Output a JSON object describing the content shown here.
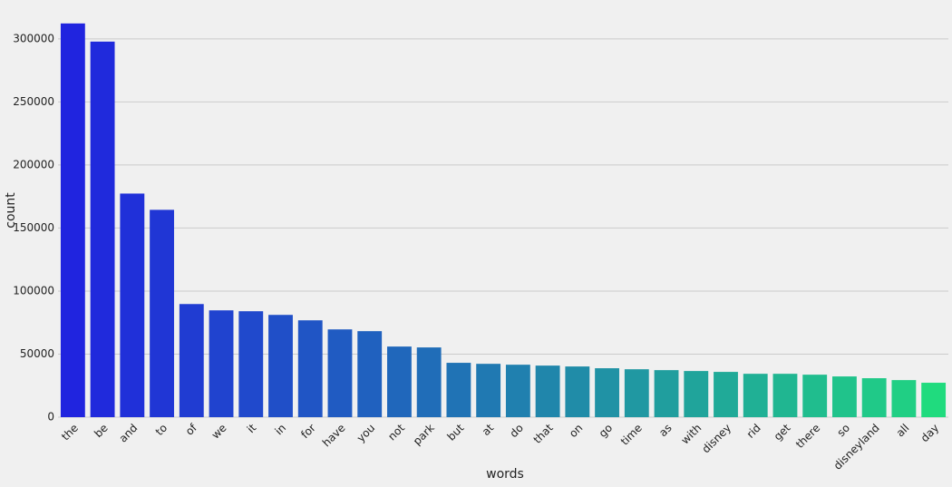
{
  "chart_data": {
    "type": "bar",
    "x_label": "words",
    "y_label": "count",
    "categories": [
      "the",
      "be",
      "and",
      "to",
      "of",
      "we",
      "it",
      "in",
      "for",
      "have",
      "you",
      "not",
      "park",
      "but",
      "at",
      "do",
      "that",
      "on",
      "go",
      "time",
      "as",
      "with",
      "disney",
      "rid",
      "get",
      "there",
      "so",
      "disneyland",
      "all",
      "day"
    ],
    "values": [
      312200,
      297800,
      177300,
      164400,
      89700,
      84700,
      84000,
      81100,
      76800,
      69600,
      68200,
      56000,
      55300,
      43100,
      42300,
      41600,
      40900,
      40200,
      38800,
      38000,
      37300,
      36600,
      35900,
      34400,
      34400,
      33700,
      32300,
      30900,
      29400,
      27300
    ],
    "colors": [
      "#2024df",
      "#202adc",
      "#2030d9",
      "#2036d5",
      "#203cd2",
      "#2043cf",
      "#2049cc",
      "#204fc8",
      "#2055c5",
      "#205bc2",
      "#2061bf",
      "#2067bb",
      "#206db8",
      "#2073b5",
      "#2079b2",
      "#2080af",
      "#2086ab",
      "#208ca8",
      "#2092a5",
      "#2098a2",
      "#209e9e",
      "#20a49b",
      "#20aa98",
      "#20b095",
      "#20b691",
      "#20bd8e",
      "#20c38b",
      "#20c988",
      "#20cf84",
      "#20db7e"
    ],
    "ylim": [
      0,
      320000
    ],
    "yticks": [
      0,
      50000,
      100000,
      150000,
      200000,
      250000,
      300000
    ],
    "grid": true
  }
}
